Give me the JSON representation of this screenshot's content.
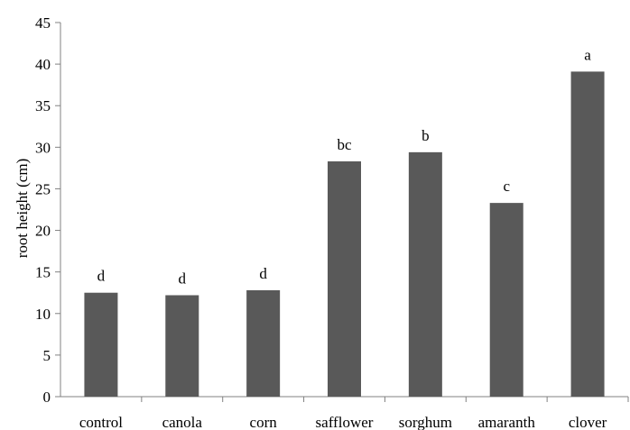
{
  "chart_data": {
    "type": "bar",
    "title": "",
    "xlabel": "",
    "ylabel": "root height (cm)",
    "ylim": [
      0,
      45
    ],
    "yticks": [
      0,
      5,
      10,
      15,
      20,
      25,
      30,
      35,
      40,
      45
    ],
    "grid": false,
    "legend": "none",
    "bar_color": "#595959",
    "categories": [
      "control",
      "canola",
      "corn",
      "safflower",
      "sorghum",
      "amaranth",
      "clover"
    ],
    "values": [
      12.5,
      12.2,
      12.8,
      28.3,
      29.4,
      23.3,
      39.1
    ],
    "labels": [
      "d",
      "d",
      "d",
      "bc",
      "b",
      "c",
      "a"
    ]
  }
}
